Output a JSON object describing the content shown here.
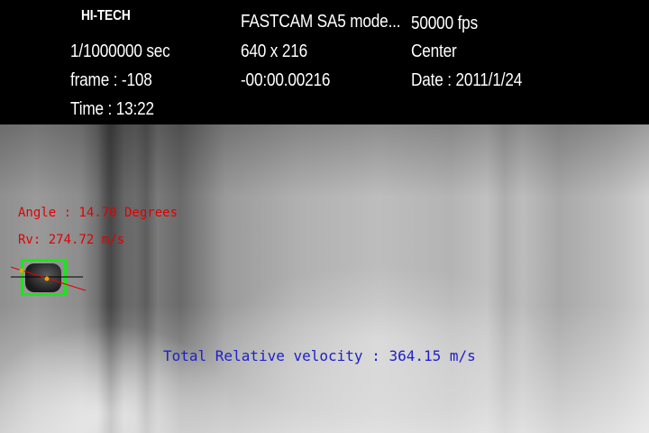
{
  "header": {
    "brand": "HI-TECH",
    "camera_model": "FASTCAM SA5 mode...",
    "frame_rate": "50000 fps",
    "shutter": "1/1000000 sec",
    "resolution": "640 x 216",
    "position": "Center",
    "frame": "frame : -108",
    "time_offset": "-00:00.00216",
    "date": "Date : 2011/1/24",
    "time": "Time : 13:22"
  },
  "annotations": {
    "angle": "Angle : 14.70 Degrees",
    "rv": "Rv: 274.72 m/s",
    "total_velocity": "Total Relative velocity : 364.15 m/s"
  },
  "colors": {
    "annotation_red": "#e00000",
    "annotation_blue": "#2020c8",
    "tracking_box": "#17e817"
  }
}
